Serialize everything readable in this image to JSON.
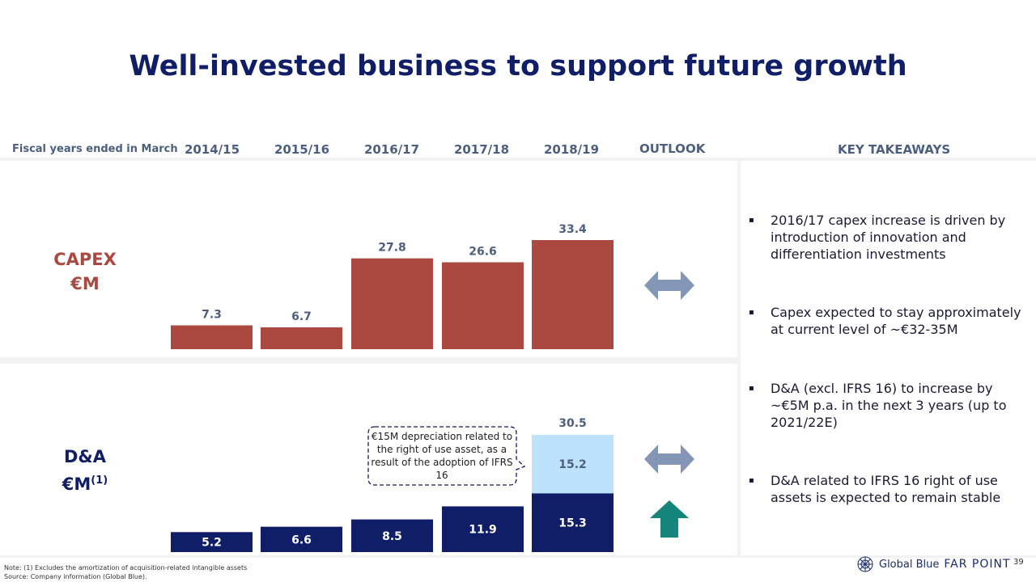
{
  "title": "Well-invested business to support future growth",
  "header": {
    "fiscal_label": "Fiscal years ended in March",
    "years": [
      "2014/15",
      "2015/16",
      "2016/17",
      "2017/18",
      "2018/19"
    ],
    "outlook": "OUTLOOK",
    "key_takeaways": "KEY TAKEAWAYS"
  },
  "colors": {
    "title": "#0f1e66",
    "capex_bar": "#ab4840",
    "da_dark": "#0f1e66",
    "da_light": "#bde2fb",
    "arrow_gray": "#8396b6",
    "arrow_teal": "#13857a"
  },
  "capex": {
    "label_line1": "CAPEX",
    "label_line2": "€M"
  },
  "da": {
    "label_line1": "D&A",
    "label_line2": "€M",
    "label_sup": "(1)"
  },
  "callout": "€15M depreciation related to the right of use asset, as a result of the adoption of IFRS 16",
  "chart_data": [
    {
      "type": "bar",
      "title": "CAPEX €M",
      "categories": [
        "2014/15",
        "2015/16",
        "2016/17",
        "2017/18",
        "2018/19"
      ],
      "values": [
        7.3,
        6.7,
        27.8,
        26.6,
        33.4
      ],
      "ylim": [
        0,
        33.4
      ]
    },
    {
      "type": "bar",
      "stacked": true,
      "title": "D&A €M(1)",
      "categories": [
        "2014/15",
        "2015/16",
        "2016/17",
        "2017/18",
        "2018/19"
      ],
      "series": [
        {
          "name": "D&A",
          "values": [
            5.2,
            6.6,
            8.5,
            11.9,
            15.3
          ]
        },
        {
          "name": "IFRS 16 right of use depreciation",
          "values": [
            null,
            null,
            null,
            null,
            15.2
          ]
        }
      ],
      "totals": [
        null,
        null,
        null,
        null,
        30.5
      ],
      "ylim": [
        0,
        30.5
      ]
    }
  ],
  "outlook_icons": [
    {
      "row": "capex",
      "icon": "double-arrow-icon",
      "meaning": "stable"
    },
    {
      "row": "da-ifrs16",
      "icon": "double-arrow-icon",
      "meaning": "stable"
    },
    {
      "row": "da-base",
      "icon": "up-arrow-icon",
      "meaning": "increase"
    }
  ],
  "takeaways": [
    "2016/17 capex increase is driven by introduction of innovation and differentiation investments",
    "Capex expected to stay approximately at current level of ~€32-35M",
    "D&A (excl. IFRS 16) to increase by ~€5M p.a. in the next 3 years (up to 2021/22E)",
    "D&A related to IFRS 16 right of use assets is expected to remain stable"
  ],
  "bullet_glyph": "▪",
  "footnote": {
    "note": "Note: (1) Excludes the amortization of acquisition-related intangible assets",
    "source": "Source: Company information (Global Blue)."
  },
  "logo": {
    "brand": "Global Blue",
    "product": "FAR POINT"
  },
  "page_number": "39"
}
